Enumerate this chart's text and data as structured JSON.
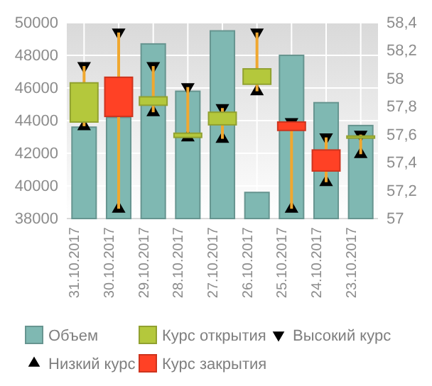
{
  "chart_data": {
    "type": "bar",
    "categories": [
      "31.10.2017",
      "30.10.2017",
      "29.10.2017",
      "28.10.2017",
      "27.10.2017",
      "26.10.2017",
      "25.10.2017",
      "24.10.2017",
      "23.10.2017"
    ],
    "series": [
      {
        "name": "Объем",
        "type": "bar",
        "color": "#7fb8b2",
        "values": [
          43600,
          44200,
          48700,
          45800,
          49500,
          39600,
          48000,
          45100,
          43700
        ]
      },
      {
        "name": "Курс открытия",
        "type": "candlestick",
        "axis": "y2",
        "color": "#b4c83c",
        "ohlc": [
          [
            57.69,
            58.09,
            57.66,
            57.97
          ],
          null,
          [
            57.81,
            58.09,
            57.76,
            57.87
          ],
          [
            57.58,
            57.94,
            57.58,
            57.61
          ],
          [
            57.67,
            57.79,
            57.57,
            57.76
          ],
          [
            57.96,
            58.33,
            57.91,
            58.07
          ],
          null,
          null,
          [
            57.58,
            57.6,
            57.46,
            57.59
          ]
        ]
      },
      {
        "name": "Высокий курс",
        "type": "scatter",
        "axis": "y2",
        "marker": "triangle-down",
        "color": "#000000",
        "values": [
          58.09,
          58.33,
          58.09,
          57.94,
          57.79,
          58.33,
          57.69,
          57.58,
          57.6
        ]
      },
      {
        "name": "Низкий курс",
        "type": "scatter",
        "axis": "y2",
        "marker": "triangle",
        "color": "#000000",
        "values": [
          57.66,
          57.07,
          57.76,
          57.58,
          57.57,
          57.91,
          57.07,
          57.26,
          57.46
        ]
      },
      {
        "name": "Курс закрытия",
        "type": "candlestick",
        "axis": "y2",
        "color": "#ff4125",
        "ohlc": [
          null,
          [
            58.01,
            58.33,
            57.07,
            57.73
          ],
          null,
          null,
          null,
          null,
          [
            57.69,
            57.69,
            57.07,
            57.63
          ],
          [
            57.49,
            57.58,
            57.26,
            57.34
          ],
          null
        ]
      }
    ],
    "ylim": [
      38000,
      50000
    ],
    "yticks": [
      38000,
      40000,
      42000,
      44000,
      46000,
      48000,
      50000
    ],
    "y2lim": [
      57,
      58.4
    ],
    "y2ticks": [
      57,
      {
        "value": 57.2,
        "label": "57,2"
      },
      {
        "value": 57.4,
        "label": "57,4"
      },
      {
        "value": 57.6,
        "label": "57,6"
      },
      {
        "value": 57.8,
        "label": "57,8"
      },
      58,
      {
        "value": 58.2,
        "label": "58,2"
      },
      {
        "value": 58.4,
        "label": "58,4"
      }
    ],
    "grid": true,
    "legend": "bottom"
  }
}
